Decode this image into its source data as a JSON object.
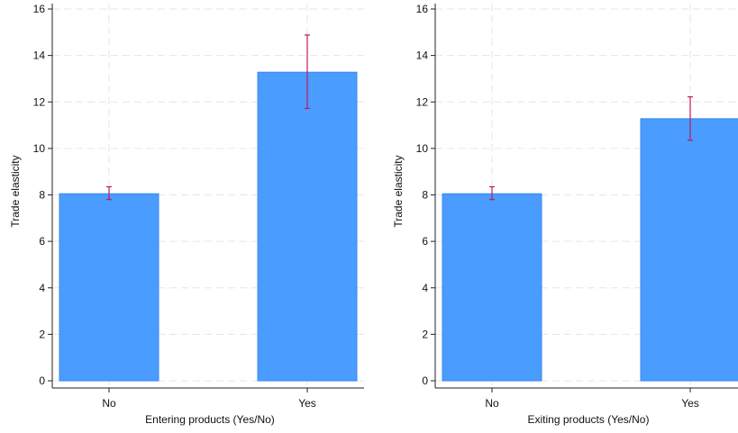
{
  "colors": {
    "bar": "#4a9cff",
    "bar_edge": "#3a8ae8",
    "error_bar": "#c2185b",
    "grid": "#e6e6e6"
  },
  "chart_data": [
    {
      "type": "bar",
      "categories": [
        "No",
        "Yes"
      ],
      "values": [
        8.05,
        13.28
      ],
      "error_low": [
        7.8,
        11.72
      ],
      "error_high": [
        8.35,
        14.88
      ],
      "xlabel": "Entering products (Yes/No)",
      "ylabel": "Trade elasticity",
      "ylim": [
        0,
        16
      ],
      "yticks": [
        0,
        2,
        4,
        6,
        8,
        10,
        12,
        14,
        16
      ],
      "grid": true
    },
    {
      "type": "bar",
      "categories": [
        "No",
        "Yes"
      ],
      "values": [
        8.05,
        11.28
      ],
      "error_low": [
        7.8,
        10.35
      ],
      "error_high": [
        8.35,
        12.22
      ],
      "xlabel": "Exiting products (Yes/No)",
      "ylabel": "Trade elasticity",
      "ylim": [
        0,
        16
      ],
      "yticks": [
        0,
        2,
        4,
        6,
        8,
        10,
        12,
        14,
        16
      ],
      "grid": true
    }
  ]
}
